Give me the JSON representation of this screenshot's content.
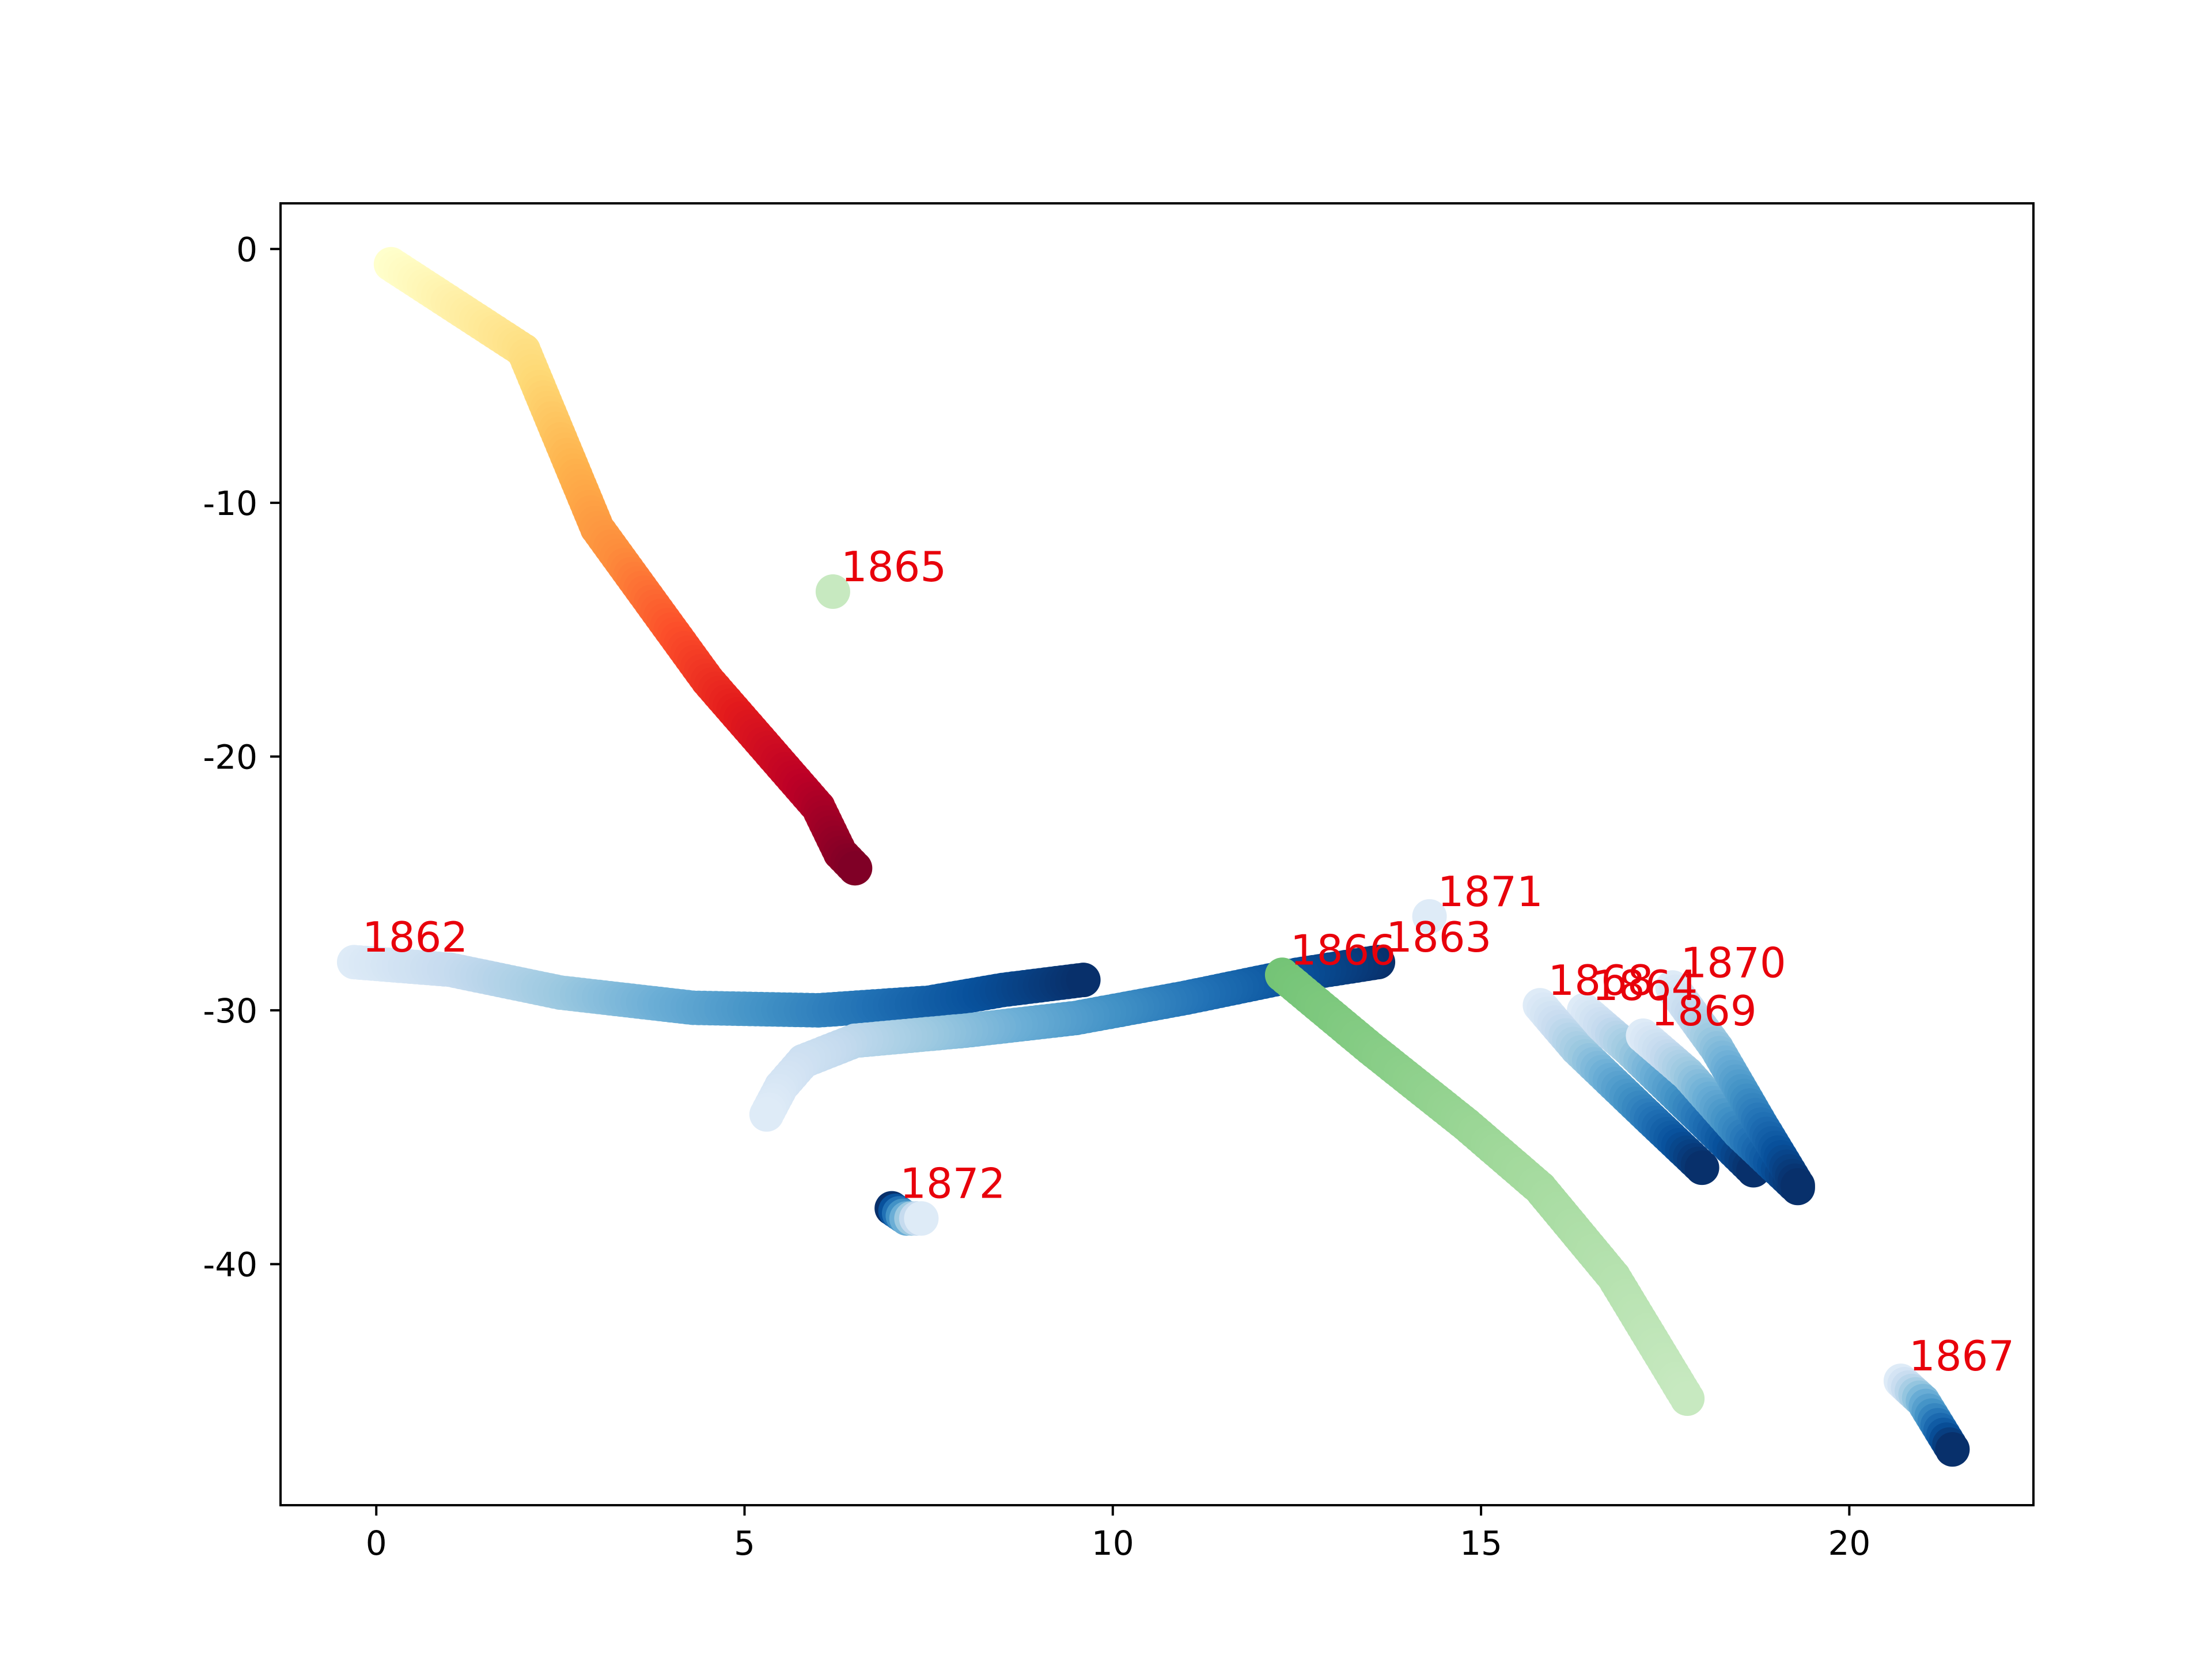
{
  "chart_data": {
    "type": "scatter",
    "title": "",
    "xlabel": "",
    "ylabel": "",
    "xlim": [
      -1.3,
      22.5
    ],
    "ylim": [
      -49.5,
      1.8
    ],
    "x_ticks": [
      0,
      5,
      10,
      15,
      20
    ],
    "y_ticks": [
      0,
      -10,
      -20,
      -30,
      -40
    ],
    "y_tick_labels": [
      "0",
      "-10",
      "-20",
      "-30",
      "-40"
    ],
    "grid": false,
    "legend": "none",
    "label_color": "#e8000b",
    "series": [
      {
        "label": "",
        "colormap": "YlOrRd",
        "points": [
          [
            0.2,
            -0.6
          ],
          [
            2.0,
            -4.0
          ],
          [
            3.0,
            -11.0
          ],
          [
            4.5,
            -17.0
          ],
          [
            6.0,
            -22.0
          ],
          [
            6.3,
            -23.8
          ],
          [
            6.5,
            -24.4
          ]
        ]
      },
      {
        "label": "1862",
        "colormap": "Blues",
        "points": [
          [
            -0.3,
            -28.1
          ],
          [
            1.0,
            -28.4
          ],
          [
            2.5,
            -29.3
          ],
          [
            4.3,
            -29.9
          ],
          [
            6.0,
            -30.0
          ],
          [
            7.5,
            -29.7
          ],
          [
            8.5,
            -29.2
          ],
          [
            9.6,
            -28.8
          ]
        ]
      },
      {
        "label": "1863",
        "colormap": "Blues_r",
        "points": [
          [
            13.6,
            -28.1
          ],
          [
            12.5,
            -28.6
          ],
          [
            11.0,
            -29.5
          ],
          [
            9.5,
            -30.3
          ],
          [
            8.0,
            -30.8
          ],
          [
            6.5,
            -31.2
          ],
          [
            5.8,
            -32.0
          ],
          [
            5.5,
            -33.0
          ],
          [
            5.3,
            -34.1
          ]
        ]
      },
      {
        "label": "1864",
        "colormap": "Blues",
        "points": [
          [
            16.4,
            -30.0
          ],
          [
            17.0,
            -31.5
          ],
          [
            18.0,
            -34.3
          ],
          [
            18.7,
            -36.3
          ]
        ]
      },
      {
        "label": "1865",
        "colormap": "Greens",
        "points": [
          [
            6.2,
            -13.5
          ]
        ]
      },
      {
        "label": "1866",
        "colormap": "Greens_r",
        "points": [
          [
            12.3,
            -28.6
          ],
          [
            13.5,
            -31.5
          ],
          [
            14.8,
            -34.5
          ],
          [
            15.8,
            -37.0
          ],
          [
            16.8,
            -40.5
          ],
          [
            17.8,
            -45.3
          ]
        ]
      },
      {
        "label": "1867",
        "colormap": "Blues",
        "points": [
          [
            20.7,
            -44.6
          ],
          [
            21.0,
            -45.4
          ],
          [
            21.4,
            -47.3
          ]
        ]
      },
      {
        "label": "1868",
        "colormap": "Blues",
        "points": [
          [
            15.8,
            -29.8
          ],
          [
            16.3,
            -31.5
          ],
          [
            17.2,
            -34.0
          ],
          [
            18.0,
            -36.2
          ]
        ]
      },
      {
        "label": "1869",
        "colormap": "Blues",
        "points": [
          [
            17.2,
            -31.0
          ],
          [
            17.8,
            -32.5
          ],
          [
            18.5,
            -34.8
          ],
          [
            19.3,
            -37.0
          ]
        ]
      },
      {
        "label": "1870",
        "colormap": "Blues",
        "points": [
          [
            17.6,
            -29.1
          ],
          [
            18.2,
            -31.5
          ],
          [
            18.8,
            -34.5
          ],
          [
            19.3,
            -36.9
          ]
        ]
      },
      {
        "label": "1871",
        "colormap": "Blues",
        "points": [
          [
            14.3,
            -26.3
          ]
        ]
      },
      {
        "label": "1872",
        "colormap": "Blues_r",
        "points": [
          [
            7.0,
            -37.8
          ],
          [
            7.2,
            -38.2
          ],
          [
            7.4,
            -38.2
          ]
        ]
      }
    ]
  }
}
